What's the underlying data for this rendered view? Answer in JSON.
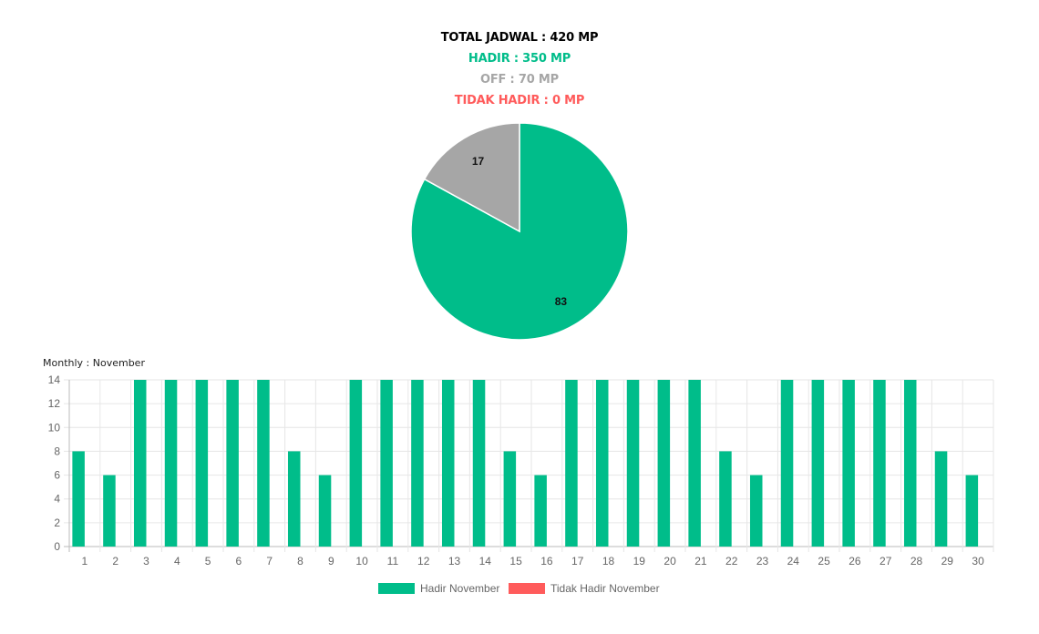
{
  "summary": {
    "total": "TOTAL JADWAL : 420 MP",
    "hadir": "HADIR : 350 MP",
    "off": "OFF : 70 MP",
    "tidak_hadir": "TIDAK HADIR : 0 MP"
  },
  "colors": {
    "hadir": "#00bd8a",
    "off": "#a6a6a6",
    "tidak_hadir": "#ff5b5b",
    "total": "#000000"
  },
  "monthly_label": "Monthly : November",
  "chart_data": [
    {
      "type": "pie",
      "slices": [
        {
          "label": "83",
          "value": 83,
          "color": "#00bd8a"
        },
        {
          "label": "17",
          "value": 17,
          "color": "#a6a6a6"
        }
      ]
    },
    {
      "type": "bar",
      "categories": [
        "1",
        "2",
        "3",
        "4",
        "5",
        "6",
        "7",
        "8",
        "9",
        "10",
        "11",
        "12",
        "13",
        "14",
        "15",
        "16",
        "17",
        "18",
        "19",
        "20",
        "21",
        "22",
        "23",
        "24",
        "25",
        "26",
        "27",
        "28",
        "29",
        "30"
      ],
      "series": [
        {
          "name": "Hadir November",
          "color": "#00bd8a",
          "values": [
            8,
            6,
            14,
            14,
            14,
            14,
            14,
            8,
            6,
            14,
            14,
            14,
            14,
            14,
            8,
            6,
            14,
            14,
            14,
            14,
            14,
            8,
            6,
            14,
            14,
            14,
            14,
            14,
            8,
            6
          ]
        },
        {
          "name": "Tidak Hadir November",
          "color": "#ff5b5b",
          "values": [
            0,
            0,
            0,
            0,
            0,
            0,
            0,
            0,
            0,
            0,
            0,
            0,
            0,
            0,
            0,
            0,
            0,
            0,
            0,
            0,
            0,
            0,
            0,
            0,
            0,
            0,
            0,
            0,
            0,
            0
          ]
        }
      ],
      "ylim": [
        0,
        14
      ],
      "yticks": [
        0,
        2,
        4,
        6,
        8,
        10,
        12,
        14
      ],
      "grid": true,
      "legend": "bottom"
    }
  ]
}
